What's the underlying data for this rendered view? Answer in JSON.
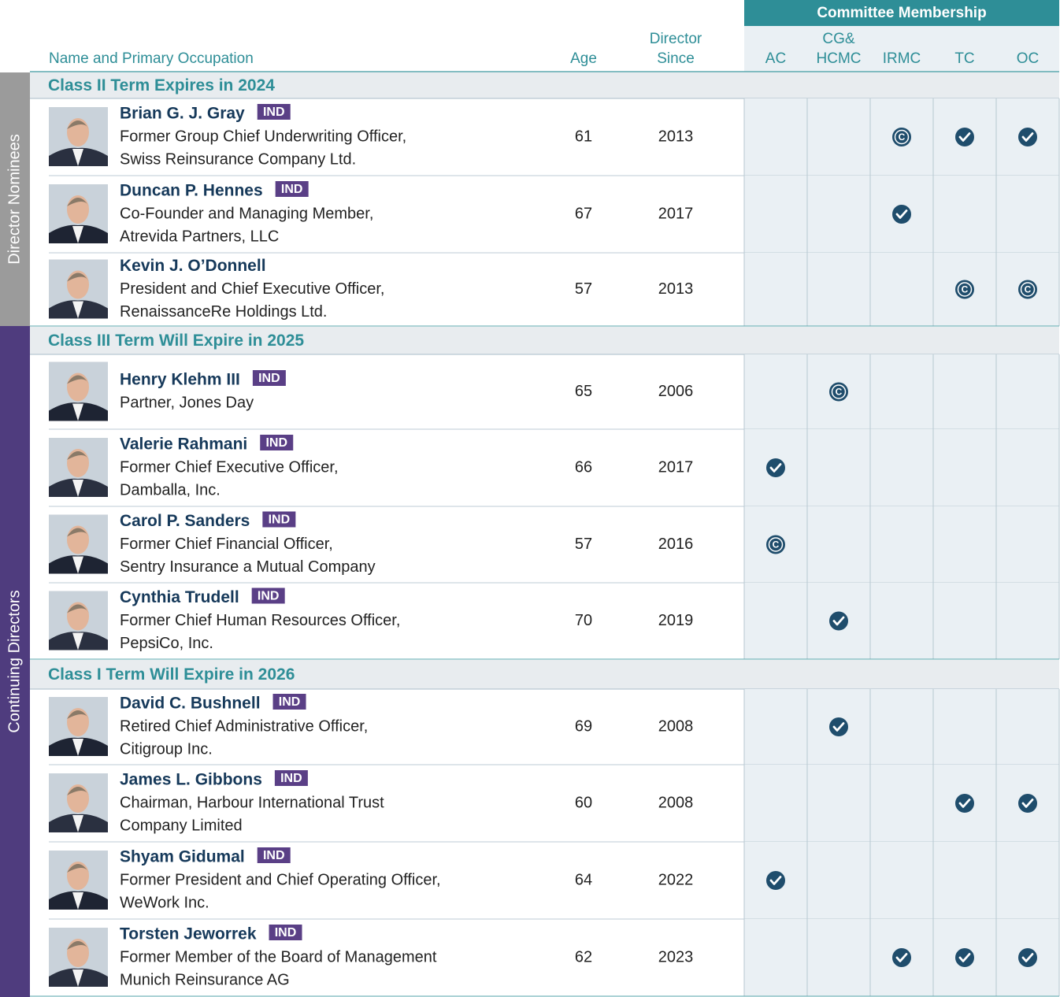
{
  "header": {
    "committee_group": "Committee Membership",
    "name_column": "Name and Primary Occupation",
    "age_column": "Age",
    "since_column": [
      "Director",
      "Since"
    ],
    "committees": [
      [
        "AC"
      ],
      [
        "CG&",
        "HCMC"
      ],
      [
        "IRMC"
      ],
      [
        "TC"
      ],
      [
        "OC"
      ]
    ]
  },
  "side_labels": [
    "Director Nominees",
    "Continuing Directors"
  ],
  "sections": [
    {
      "title": "Class II Term Expires in 2024",
      "rows": [
        {
          "name": "Brian G. J. Gray",
          "badge": "IND",
          "occupation": [
            "Former Group Chief Underwriting Officer,",
            "Swiss Reinsurance Company Ltd."
          ],
          "age": 61,
          "director_since": 2013,
          "committees": [
            null,
            null,
            "C",
            true,
            true
          ]
        },
        {
          "name": "Duncan P. Hennes",
          "badge": "IND",
          "occupation": [
            "Co-Founder and Managing Member,",
            "Atrevida Partners, LLC"
          ],
          "age": 67,
          "director_since": 2017,
          "committees": [
            null,
            null,
            true,
            null,
            null
          ]
        },
        {
          "name": "Kevin J. O’Donnell",
          "occupation": [
            "President and Chief Executive Officer,",
            "RenaissanceRe Holdings Ltd."
          ],
          "age": 57,
          "director_since": 2013,
          "committees": [
            null,
            null,
            null,
            "C",
            "C"
          ]
        }
      ]
    },
    {
      "title": "Class III Term Will Expire in 2025",
      "rows": [
        {
          "name": "Henry Klehm III",
          "badge": "IND",
          "occupation": [
            "Partner, Jones Day"
          ],
          "age": 65,
          "director_since": 2006,
          "committees": [
            null,
            "C",
            null,
            null,
            null
          ]
        },
        {
          "name": "Valerie Rahmani",
          "badge": "IND",
          "occupation": [
            "Former Chief Executive Officer,",
            "Damballa, Inc."
          ],
          "age": 66,
          "director_since": 2017,
          "committees": [
            true,
            null,
            null,
            null,
            null
          ]
        },
        {
          "name": "Carol P. Sanders",
          "badge": "IND",
          "occupation": [
            "Former Chief Financial Officer,",
            "Sentry Insurance a Mutual Company"
          ],
          "age": 57,
          "director_since": 2016,
          "committees": [
            "C",
            null,
            null,
            null,
            null
          ]
        },
        {
          "name": "Cynthia Trudell",
          "badge": "IND",
          "occupation": [
            "Former Chief Human Resources Officer,",
            "PepsiCo, Inc."
          ],
          "age": 70,
          "director_since": 2019,
          "committees": [
            null,
            true,
            null,
            null,
            null
          ]
        }
      ]
    },
    {
      "title": "Class I Term Will Expire in 2026",
      "rows": [
        {
          "name": "David C. Bushnell",
          "badge": "IND",
          "occupation": [
            "Retired Chief Administrative Officer,",
            "Citigroup Inc."
          ],
          "age": 69,
          "director_since": 2008,
          "committees": [
            null,
            true,
            null,
            null,
            null
          ]
        },
        {
          "name": "James L. Gibbons",
          "badge": "IND",
          "occupation": [
            "Chairman, Harbour International Trust",
            "Company Limited"
          ],
          "age": 60,
          "director_since": 2008,
          "committees": [
            null,
            null,
            null,
            true,
            true
          ]
        },
        {
          "name": "Shyam Gidumal",
          "badge": "IND",
          "occupation": [
            "Former President and Chief Operating Officer,",
            "WeWork Inc."
          ],
          "age": 64,
          "director_since": 2022,
          "committees": [
            true,
            null,
            null,
            null,
            null
          ]
        },
        {
          "name": "Torsten Jeworrek",
          "badge": "IND",
          "occupation": [
            "Former Member of the Board of Management",
            "Munich Reinsurance AG"
          ],
          "age": 62,
          "director_since": 2023,
          "committees": [
            null,
            null,
            true,
            true,
            true
          ]
        }
      ]
    }
  ]
}
